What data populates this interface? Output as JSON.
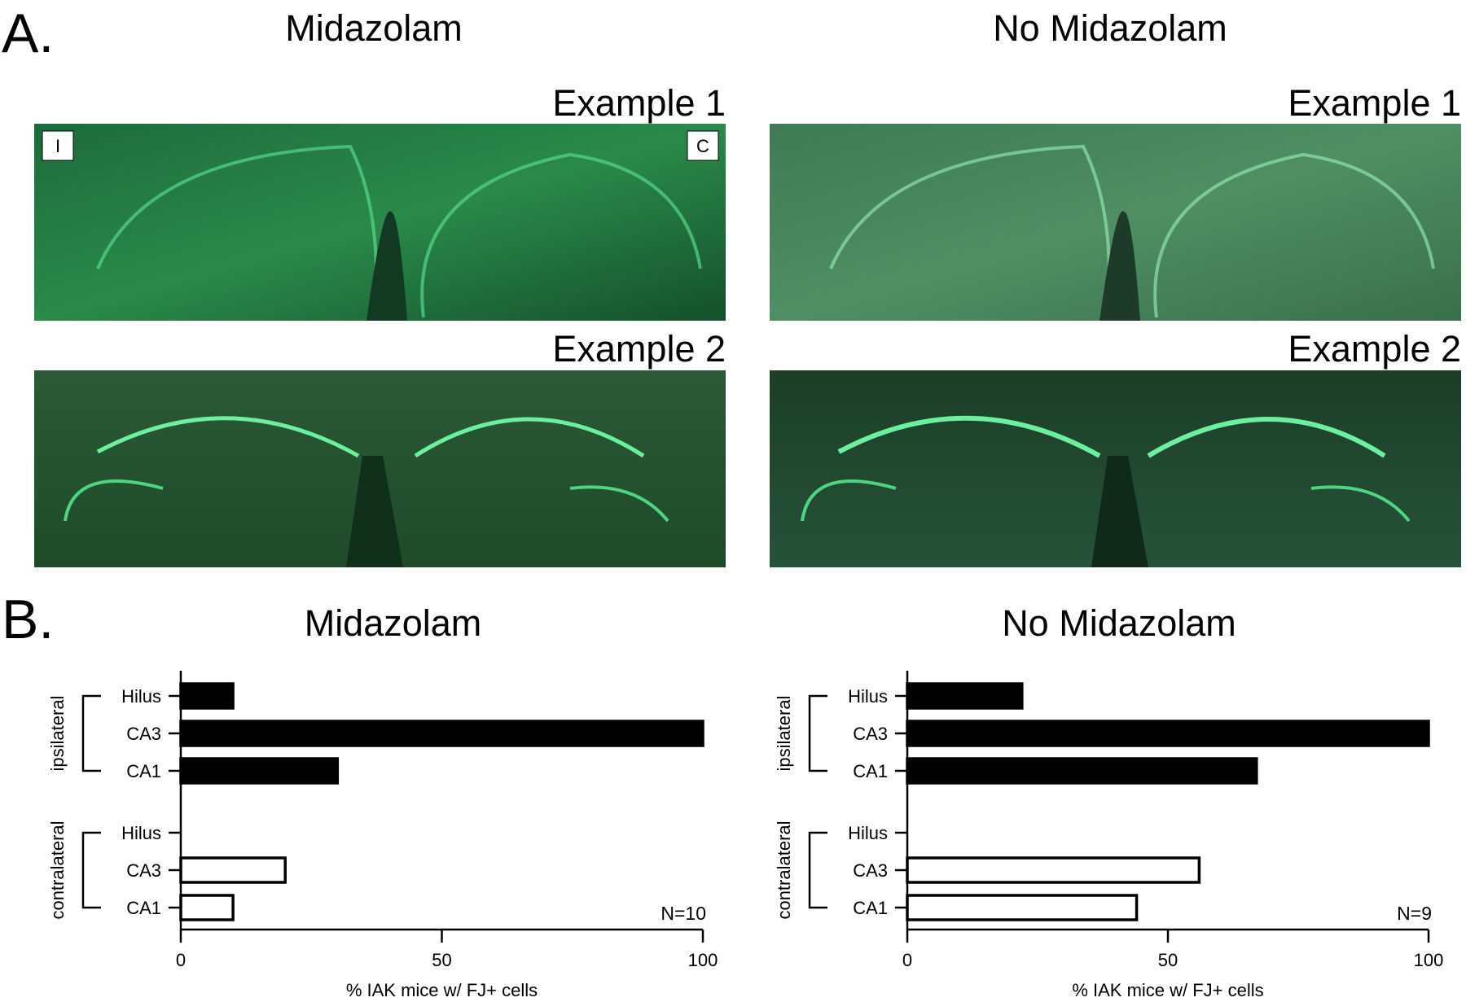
{
  "panel_a": {
    "label": "A.",
    "columns": [
      {
        "title": "Midazolam",
        "examples": [
          "Example 1",
          "Example 2"
        ]
      },
      {
        "title": "No Midazolam",
        "examples": [
          "Example 1",
          "Example 2"
        ]
      }
    ],
    "side_markers": [
      "I",
      "C"
    ]
  },
  "panel_b_label": "B.",
  "chart_data": [
    {
      "type": "bar",
      "orientation": "horizontal",
      "title": "Midazolam",
      "categories": [
        "Hilus",
        "CA3",
        "CA1"
      ],
      "series": [
        {
          "name": "ipsilateral",
          "color": "#000000",
          "values": [
            10,
            100,
            30
          ]
        },
        {
          "name": "contralateral",
          "color": "#ffffff",
          "values": [
            0,
            20,
            10
          ]
        }
      ],
      "xlabel": "% IAK mice w/ FJ+ cells",
      "xlim": [
        0,
        100
      ],
      "xticks": [
        0,
        50,
        100
      ],
      "annotation": "N=10"
    },
    {
      "type": "bar",
      "orientation": "horizontal",
      "title": "No Midazolam",
      "categories": [
        "Hilus",
        "CA3",
        "CA1"
      ],
      "series": [
        {
          "name": "ipsilateral",
          "color": "#000000",
          "values": [
            22,
            100,
            67
          ]
        },
        {
          "name": "contralateral",
          "color": "#ffffff",
          "values": [
            0,
            56,
            44
          ]
        }
      ],
      "xlabel": "% IAK mice w/ FJ+ cells",
      "xlim": [
        0,
        100
      ],
      "xticks": [
        0,
        50,
        100
      ],
      "annotation": "N=9"
    }
  ]
}
